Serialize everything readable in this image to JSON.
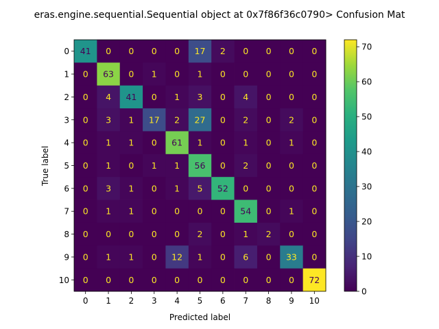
{
  "chart_data": {
    "type": "heatmap",
    "title": "eras.engine.sequential.Sequential object at 0x7f86f36c0790> Confusion Mat",
    "xlabel": "Predicted label",
    "ylabel": "True label",
    "x_ticks": [
      "0",
      "1",
      "2",
      "3",
      "4",
      "5",
      "6",
      "7",
      "8",
      "9",
      "10"
    ],
    "y_ticks": [
      "0",
      "1",
      "2",
      "3",
      "4",
      "5",
      "6",
      "7",
      "8",
      "9",
      "10"
    ],
    "values": [
      [
        41,
        0,
        0,
        0,
        0,
        17,
        2,
        0,
        0,
        0,
        0
      ],
      [
        0,
        63,
        0,
        1,
        0,
        1,
        0,
        0,
        0,
        0,
        0
      ],
      [
        0,
        4,
        41,
        0,
        1,
        3,
        0,
        4,
        0,
        0,
        0
      ],
      [
        0,
        3,
        1,
        17,
        2,
        27,
        0,
        2,
        0,
        2,
        0
      ],
      [
        0,
        1,
        1,
        0,
        61,
        1,
        0,
        1,
        0,
        1,
        0
      ],
      [
        0,
        1,
        0,
        1,
        1,
        56,
        0,
        2,
        0,
        0,
        0
      ],
      [
        0,
        3,
        1,
        0,
        1,
        5,
        52,
        0,
        0,
        0,
        0
      ],
      [
        0,
        1,
        1,
        0,
        0,
        0,
        0,
        54,
        0,
        1,
        0
      ],
      [
        0,
        0,
        0,
        0,
        0,
        2,
        0,
        1,
        2,
        0,
        0
      ],
      [
        0,
        1,
        1,
        0,
        12,
        1,
        0,
        6,
        0,
        33,
        0
      ],
      [
        0,
        0,
        0,
        0,
        0,
        0,
        0,
        0,
        0,
        0,
        72
      ]
    ],
    "colormap": "viridis",
    "value_range": [
      0,
      72
    ],
    "colorbar_ticks": [
      0,
      10,
      20,
      30,
      40,
      50,
      60,
      70
    ]
  }
}
